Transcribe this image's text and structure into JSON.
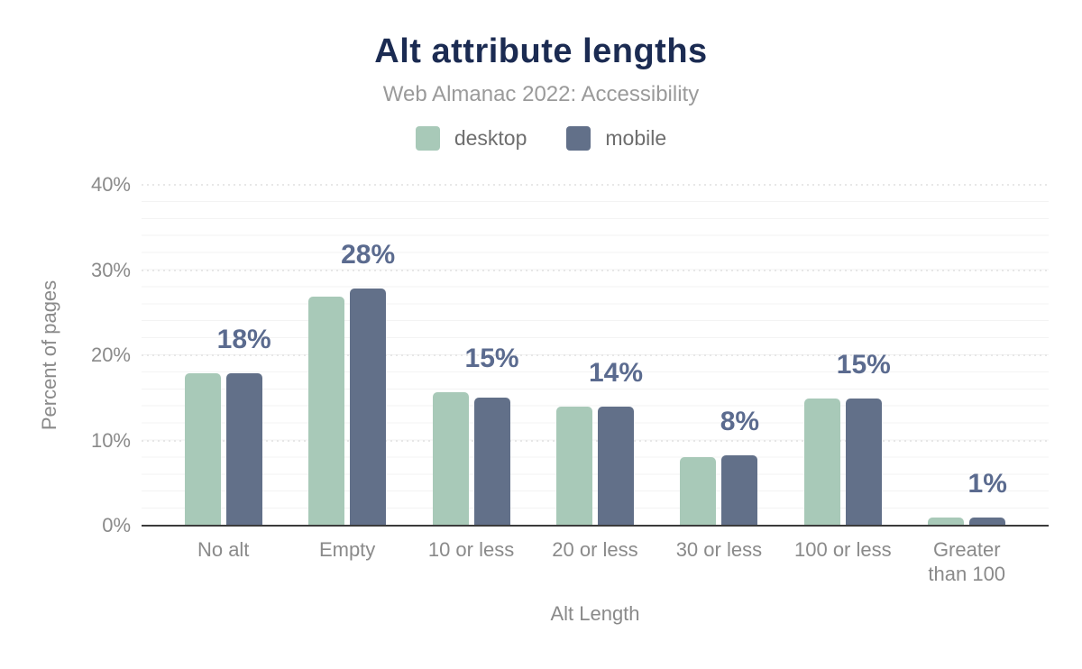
{
  "colors": {
    "background": "#ffffff",
    "title_text": "#1b2b52",
    "subtitle_text": "#9a9a9a",
    "legend_text": "#6e6e6e",
    "axis_text": "#8a8a8a",
    "data_label_text": "#5b6b8f",
    "baseline": "#3b3b3b",
    "minor_gridline": "#f3f3f3",
    "major_gridline": "#e7e7e7",
    "desktop_bar": "#a8c9b8",
    "mobile_bar": "#627089"
  },
  "chart_data": {
    "type": "bar",
    "title": "Alt attribute lengths",
    "subtitle": "Web Almanac 2022: Accessibility",
    "xlabel": "Alt Length",
    "ylabel": "Percent of pages",
    "ylim": [
      0,
      40
    ],
    "y_ticks": [
      "40%",
      "30%",
      "20%",
      "10%",
      "0%"
    ],
    "grid": {
      "orientation": "horizontal",
      "minor_step_pct": 2,
      "major_step_pct": 10,
      "major_style": "dotted"
    },
    "legend_position": "top",
    "categories": [
      "No alt",
      "Empty",
      "10 or less",
      "20 or less",
      "30 or less",
      "100 or less",
      "Greater\nthan 100"
    ],
    "series": [
      {
        "name": "desktop",
        "color": "#a8c9b8",
        "values": [
          17.9,
          26.9,
          15.7,
          14.0,
          8.0,
          14.9,
          1.0
        ]
      },
      {
        "name": "mobile",
        "color": "#627089",
        "values": [
          17.9,
          27.8,
          15.0,
          14.0,
          8.3,
          14.9,
          1.0
        ]
      }
    ],
    "data_labels": [
      "18%",
      "28%",
      "15%",
      "14%",
      "8%",
      "15%",
      "1%"
    ],
    "label_color": "#5b6b8f"
  }
}
